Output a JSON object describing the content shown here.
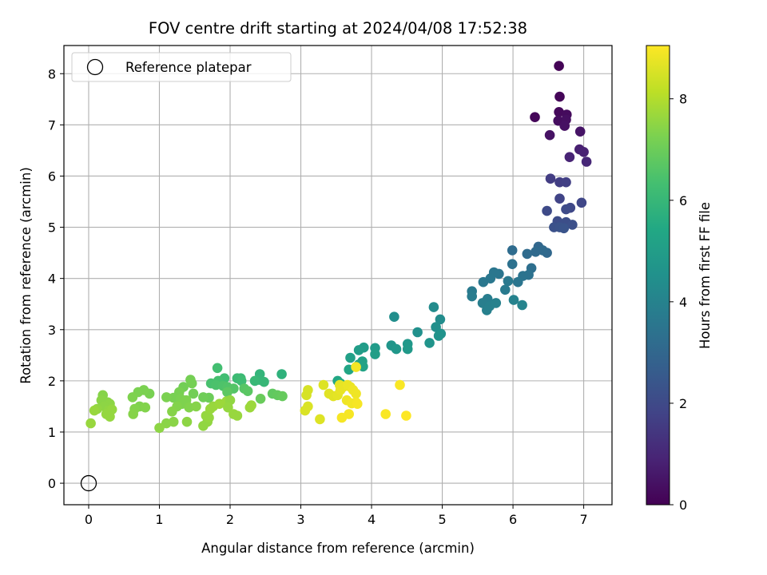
{
  "chart_data": {
    "type": "scatter",
    "title": "FOV centre drift starting at 2024/04/08 17:52:38",
    "xlabel": "Angular distance from reference (arcmin)",
    "ylabel": "Rotation from reference (arcmin)",
    "xlim": [
      -0.35,
      7.4
    ],
    "ylim": [
      -0.42,
      8.55
    ],
    "xticks": [
      0,
      1,
      2,
      3,
      4,
      5,
      6,
      7
    ],
    "yticks": [
      0,
      1,
      2,
      3,
      4,
      5,
      6,
      7,
      8
    ],
    "grid": true,
    "legend": {
      "placement": "top-left",
      "entries": [
        "Reference platepar"
      ]
    },
    "reference_point": {
      "x": 0,
      "y": 0,
      "marker": "open-circle",
      "color": "#000000"
    },
    "colorbar": {
      "label": "Hours from first FF file",
      "range": [
        0,
        9.05
      ],
      "ticks": [
        0,
        2,
        4,
        6,
        8
      ],
      "colormap": "viridis"
    },
    "series": [
      {
        "points": [
          [
            6.65,
            8.15,
            0.05
          ],
          [
            6.66,
            7.55,
            0.1
          ],
          [
            6.31,
            7.15,
            0.15
          ],
          [
            6.65,
            7.25,
            0.2
          ],
          [
            6.76,
            7.2,
            0.25
          ],
          [
            6.64,
            7.08,
            0.3
          ],
          [
            6.75,
            7.1,
            0.35
          ],
          [
            6.73,
            6.98,
            0.4
          ],
          [
            6.52,
            6.8,
            0.45
          ],
          [
            6.95,
            6.87,
            0.5
          ],
          [
            6.94,
            6.52,
            0.8
          ],
          [
            7.0,
            6.47,
            0.85
          ],
          [
            6.8,
            6.37,
            0.9
          ],
          [
            7.04,
            6.28,
            1.0
          ],
          [
            6.53,
            5.95,
            1.6
          ],
          [
            6.66,
            5.88,
            1.65
          ],
          [
            6.75,
            5.88,
            1.7
          ],
          [
            6.66,
            5.56,
            1.8
          ],
          [
            6.97,
            5.48,
            1.9
          ],
          [
            6.81,
            5.38,
            1.95
          ],
          [
            6.48,
            5.32,
            2.0
          ],
          [
            6.75,
            5.35,
            2.05
          ],
          [
            6.63,
            5.12,
            2.1
          ],
          [
            6.75,
            5.1,
            2.15
          ],
          [
            6.84,
            5.05,
            2.2
          ],
          [
            6.58,
            5.0,
            2.25
          ],
          [
            6.66,
            5.0,
            2.3
          ],
          [
            6.72,
            4.98,
            2.35
          ],
          [
            6.36,
            4.62,
            3.0
          ],
          [
            6.48,
            4.5,
            3.05
          ],
          [
            6.32,
            4.52,
            3.1
          ],
          [
            6.42,
            4.55,
            3.1
          ],
          [
            6.2,
            4.48,
            3.15
          ],
          [
            5.99,
            4.55,
            3.2
          ],
          [
            6.26,
            4.2,
            3.3
          ],
          [
            5.99,
            4.28,
            3.35
          ],
          [
            6.22,
            4.07,
            3.4
          ],
          [
            6.14,
            4.05,
            3.45
          ],
          [
            6.07,
            3.93,
            3.5
          ],
          [
            5.8,
            4.09,
            3.5
          ],
          [
            5.73,
            4.12,
            3.55
          ],
          [
            5.68,
            4.0,
            3.6
          ],
          [
            5.58,
            3.93,
            3.6
          ],
          [
            5.93,
            3.95,
            3.65
          ],
          [
            5.42,
            3.75,
            3.7
          ],
          [
            5.89,
            3.78,
            3.7
          ],
          [
            5.42,
            3.65,
            3.75
          ],
          [
            5.64,
            3.6,
            3.8
          ],
          [
            5.57,
            3.52,
            3.85
          ],
          [
            5.67,
            3.46,
            3.9
          ],
          [
            5.63,
            3.38,
            3.9
          ],
          [
            5.76,
            3.52,
            3.95
          ],
          [
            6.01,
            3.58,
            4.0
          ],
          [
            6.13,
            3.48,
            4.05
          ],
          [
            4.88,
            3.44,
            4.3
          ],
          [
            4.97,
            3.2,
            4.35
          ],
          [
            4.32,
            3.25,
            4.4
          ],
          [
            4.91,
            3.05,
            4.45
          ],
          [
            4.65,
            2.95,
            4.5
          ],
          [
            4.98,
            2.92,
            4.55
          ],
          [
            4.95,
            2.88,
            4.6
          ],
          [
            4.82,
            2.74,
            4.65
          ],
          [
            4.28,
            2.69,
            4.7
          ],
          [
            4.35,
            2.62,
            4.75
          ],
          [
            4.51,
            2.72,
            4.8
          ],
          [
            4.51,
            2.62,
            4.85
          ],
          [
            4.05,
            2.64,
            4.9
          ],
          [
            3.89,
            2.65,
            4.95
          ],
          [
            3.82,
            2.6,
            5.0
          ],
          [
            4.05,
            2.52,
            5.05
          ],
          [
            3.7,
            2.45,
            5.1
          ],
          [
            3.87,
            2.38,
            5.15
          ],
          [
            3.82,
            2.32,
            5.2
          ],
          [
            3.88,
            2.28,
            5.25
          ],
          [
            3.68,
            2.22,
            5.3
          ],
          [
            3.52,
            2.0,
            5.4
          ],
          [
            3.56,
            1.95,
            5.5
          ],
          [
            2.73,
            2.13,
            5.8
          ],
          [
            2.42,
            2.13,
            5.9
          ],
          [
            2.41,
            2.02,
            5.95
          ],
          [
            2.48,
            1.98,
            6.0
          ],
          [
            2.35,
            2.0,
            6.05
          ],
          [
            2.15,
            2.05,
            6.1
          ],
          [
            2.1,
            2.05,
            6.15
          ],
          [
            2.16,
            2.0,
            6.2
          ],
          [
            1.92,
            2.05,
            6.25
          ],
          [
            1.82,
            2.25,
            6.3
          ],
          [
            1.83,
            2.0,
            6.35
          ],
          [
            1.73,
            1.95,
            6.4
          ],
          [
            1.8,
            1.92,
            6.45
          ],
          [
            1.9,
            1.9,
            6.5
          ],
          [
            1.96,
            1.88,
            6.55
          ],
          [
            2.05,
            1.85,
            6.6
          ],
          [
            2.2,
            1.85,
            6.65
          ],
          [
            2.25,
            1.8,
            6.7
          ],
          [
            1.96,
            1.78,
            6.75
          ],
          [
            2.6,
            1.75,
            6.8
          ],
          [
            2.67,
            1.72,
            6.85
          ],
          [
            2.74,
            1.7,
            6.9
          ],
          [
            2.43,
            1.65,
            6.95
          ],
          [
            1.7,
            1.67,
            7.0
          ],
          [
            1.62,
            1.68,
            7.05
          ],
          [
            1.48,
            1.75,
            7.1
          ],
          [
            1.34,
            1.88,
            7.1
          ],
          [
            1.44,
            2.02,
            7.15
          ],
          [
            1.46,
            1.95,
            7.15
          ],
          [
            1.28,
            1.78,
            7.2
          ],
          [
            1.2,
            1.67,
            7.2
          ],
          [
            1.1,
            1.68,
            7.25
          ],
          [
            1.3,
            1.65,
            7.25
          ],
          [
            1.38,
            1.62,
            7.3
          ],
          [
            1.32,
            1.55,
            7.3
          ],
          [
            1.25,
            1.5,
            7.35
          ],
          [
            1.42,
            1.48,
            7.35
          ],
          [
            1.52,
            1.5,
            7.4
          ],
          [
            1.18,
            1.4,
            7.4
          ],
          [
            1.2,
            1.2,
            7.45
          ],
          [
            1.1,
            1.17,
            7.45
          ],
          [
            1.0,
            1.08,
            7.5
          ],
          [
            1.39,
            1.2,
            7.5
          ],
          [
            1.62,
            1.12,
            7.55
          ],
          [
            1.68,
            1.2,
            7.55
          ],
          [
            1.7,
            1.28,
            7.6
          ],
          [
            1.66,
            1.32,
            7.6
          ],
          [
            1.72,
            1.45,
            7.65
          ],
          [
            1.76,
            1.5,
            7.65
          ],
          [
            1.85,
            1.55,
            7.7
          ],
          [
            1.95,
            1.6,
            7.7
          ],
          [
            2.0,
            1.62,
            7.55
          ],
          [
            1.97,
            1.48,
            7.6
          ],
          [
            2.05,
            1.35,
            7.65
          ],
          [
            2.1,
            1.32,
            7.65
          ],
          [
            2.28,
            1.48,
            7.7
          ],
          [
            2.3,
            1.52,
            7.7
          ],
          [
            0.86,
            1.75,
            7.2
          ],
          [
            0.78,
            1.82,
            7.25
          ],
          [
            0.7,
            1.78,
            7.25
          ],
          [
            0.62,
            1.68,
            7.3
          ],
          [
            0.72,
            1.5,
            7.3
          ],
          [
            0.65,
            1.45,
            7.35
          ],
          [
            0.8,
            1.48,
            7.35
          ],
          [
            0.63,
            1.35,
            7.4
          ],
          [
            0.2,
            1.72,
            7.4
          ],
          [
            0.18,
            1.62,
            7.45
          ],
          [
            0.27,
            1.58,
            7.45
          ],
          [
            0.3,
            1.55,
            7.5
          ],
          [
            0.22,
            1.5,
            7.5
          ],
          [
            0.12,
            1.45,
            7.55
          ],
          [
            0.28,
            1.42,
            7.55
          ],
          [
            0.33,
            1.44,
            7.6
          ],
          [
            0.25,
            1.35,
            7.6
          ],
          [
            0.3,
            1.3,
            7.6
          ],
          [
            0.08,
            1.42,
            7.65
          ],
          [
            0.03,
            1.17,
            7.65
          ],
          [
            3.1,
            1.82,
            8.5
          ],
          [
            3.08,
            1.72,
            8.5
          ],
          [
            3.1,
            1.5,
            8.55
          ],
          [
            3.06,
            1.42,
            8.55
          ],
          [
            3.27,
            1.25,
            8.6
          ],
          [
            3.32,
            1.92,
            8.6
          ],
          [
            3.4,
            1.75,
            8.65
          ],
          [
            3.46,
            1.7,
            8.65
          ],
          [
            3.52,
            1.72,
            8.7
          ],
          [
            3.55,
            1.92,
            8.7
          ],
          [
            3.56,
            1.82,
            8.75
          ],
          [
            3.6,
            1.88,
            8.75
          ],
          [
            3.66,
            1.92,
            8.8
          ],
          [
            3.7,
            1.88,
            8.8
          ],
          [
            3.74,
            1.82,
            8.85
          ],
          [
            3.78,
            1.75,
            8.85
          ],
          [
            3.65,
            1.62,
            8.85
          ],
          [
            3.72,
            1.56,
            8.9
          ],
          [
            3.78,
            1.58,
            8.9
          ],
          [
            3.8,
            1.55,
            8.95
          ],
          [
            3.68,
            1.35,
            8.95
          ],
          [
            3.58,
            1.28,
            8.95
          ],
          [
            3.78,
            2.27,
            8.9
          ],
          [
            4.4,
            1.92,
            9.0
          ],
          [
            4.2,
            1.35,
            9.0
          ],
          [
            4.49,
            1.32,
            9.05
          ]
        ]
      }
    ]
  }
}
